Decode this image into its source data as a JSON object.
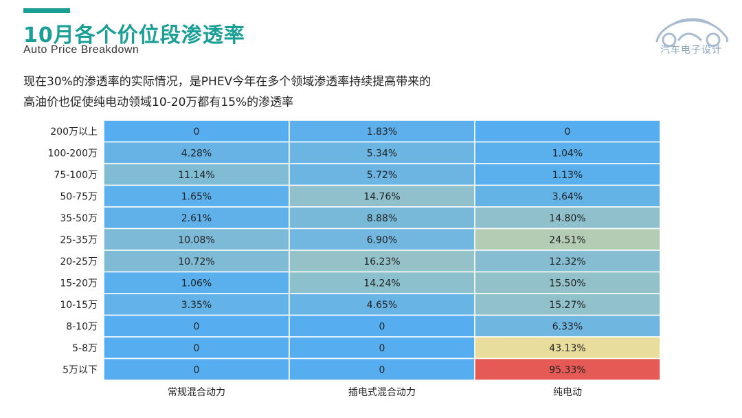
{
  "header": {
    "title": "10月各个价位段渗透率",
    "subtitle": "Auto Price Breakdown",
    "logo_text": "汽车电子设计"
  },
  "note": {
    "line1": "现在30%的渗透率的实际情况，是PHEV今年在多个领域渗透率持续提高带来的",
    "line2": "高油价也促使纯电动领域10-20万都有15%的渗透率"
  },
  "colors": {
    "accent": "#1a9f97",
    "low": "#56aef0",
    "mid": "#b7cdb3",
    "yellow": "#eedf9c",
    "high": "#e55a55",
    "grid_line": "#ffffff"
  },
  "chart_data": {
    "type": "heatmap",
    "title": "10月各个价位段渗透率",
    "columns": [
      "常规混合动力",
      "插电式混合动力",
      "纯电动"
    ],
    "rows": [
      "200万以上",
      "100-200万",
      "75-100万",
      "50-75万",
      "35-50万",
      "25-35万",
      "20-25万",
      "15-20万",
      "10-15万",
      "8-10万",
      "5-8万",
      "5万以下"
    ],
    "values": [
      [
        0,
        1.83,
        0
      ],
      [
        4.28,
        5.34,
        1.04
      ],
      [
        11.14,
        5.72,
        1.13
      ],
      [
        1.65,
        14.76,
        3.64
      ],
      [
        2.61,
        8.88,
        14.8
      ],
      [
        10.08,
        6.9,
        24.51
      ],
      [
        10.72,
        16.23,
        12.32
      ],
      [
        1.06,
        14.24,
        15.5
      ],
      [
        3.35,
        4.65,
        15.27
      ],
      [
        0,
        0,
        6.33
      ],
      [
        0,
        0,
        43.13
      ],
      [
        0,
        0,
        95.33
      ]
    ],
    "labels": [
      [
        "0",
        "1.83%",
        "0"
      ],
      [
        "4.28%",
        "5.34%",
        "1.04%"
      ],
      [
        "11.14%",
        "5.72%",
        "1.13%"
      ],
      [
        "1.65%",
        "14.76%",
        "3.64%"
      ],
      [
        "2.61%",
        "8.88%",
        "14.80%"
      ],
      [
        "10.08%",
        "6.90%",
        "24.51%"
      ],
      [
        "10.72%",
        "16.23%",
        "12.32%"
      ],
      [
        "1.06%",
        "14.24%",
        "15.50%"
      ],
      [
        "3.35%",
        "4.65%",
        "15.27%"
      ],
      [
        "0",
        "0",
        "6.33%"
      ],
      [
        "0",
        "0",
        "43.13%"
      ],
      [
        "0",
        "0",
        "95.33%"
      ]
    ],
    "unit": "%"
  }
}
